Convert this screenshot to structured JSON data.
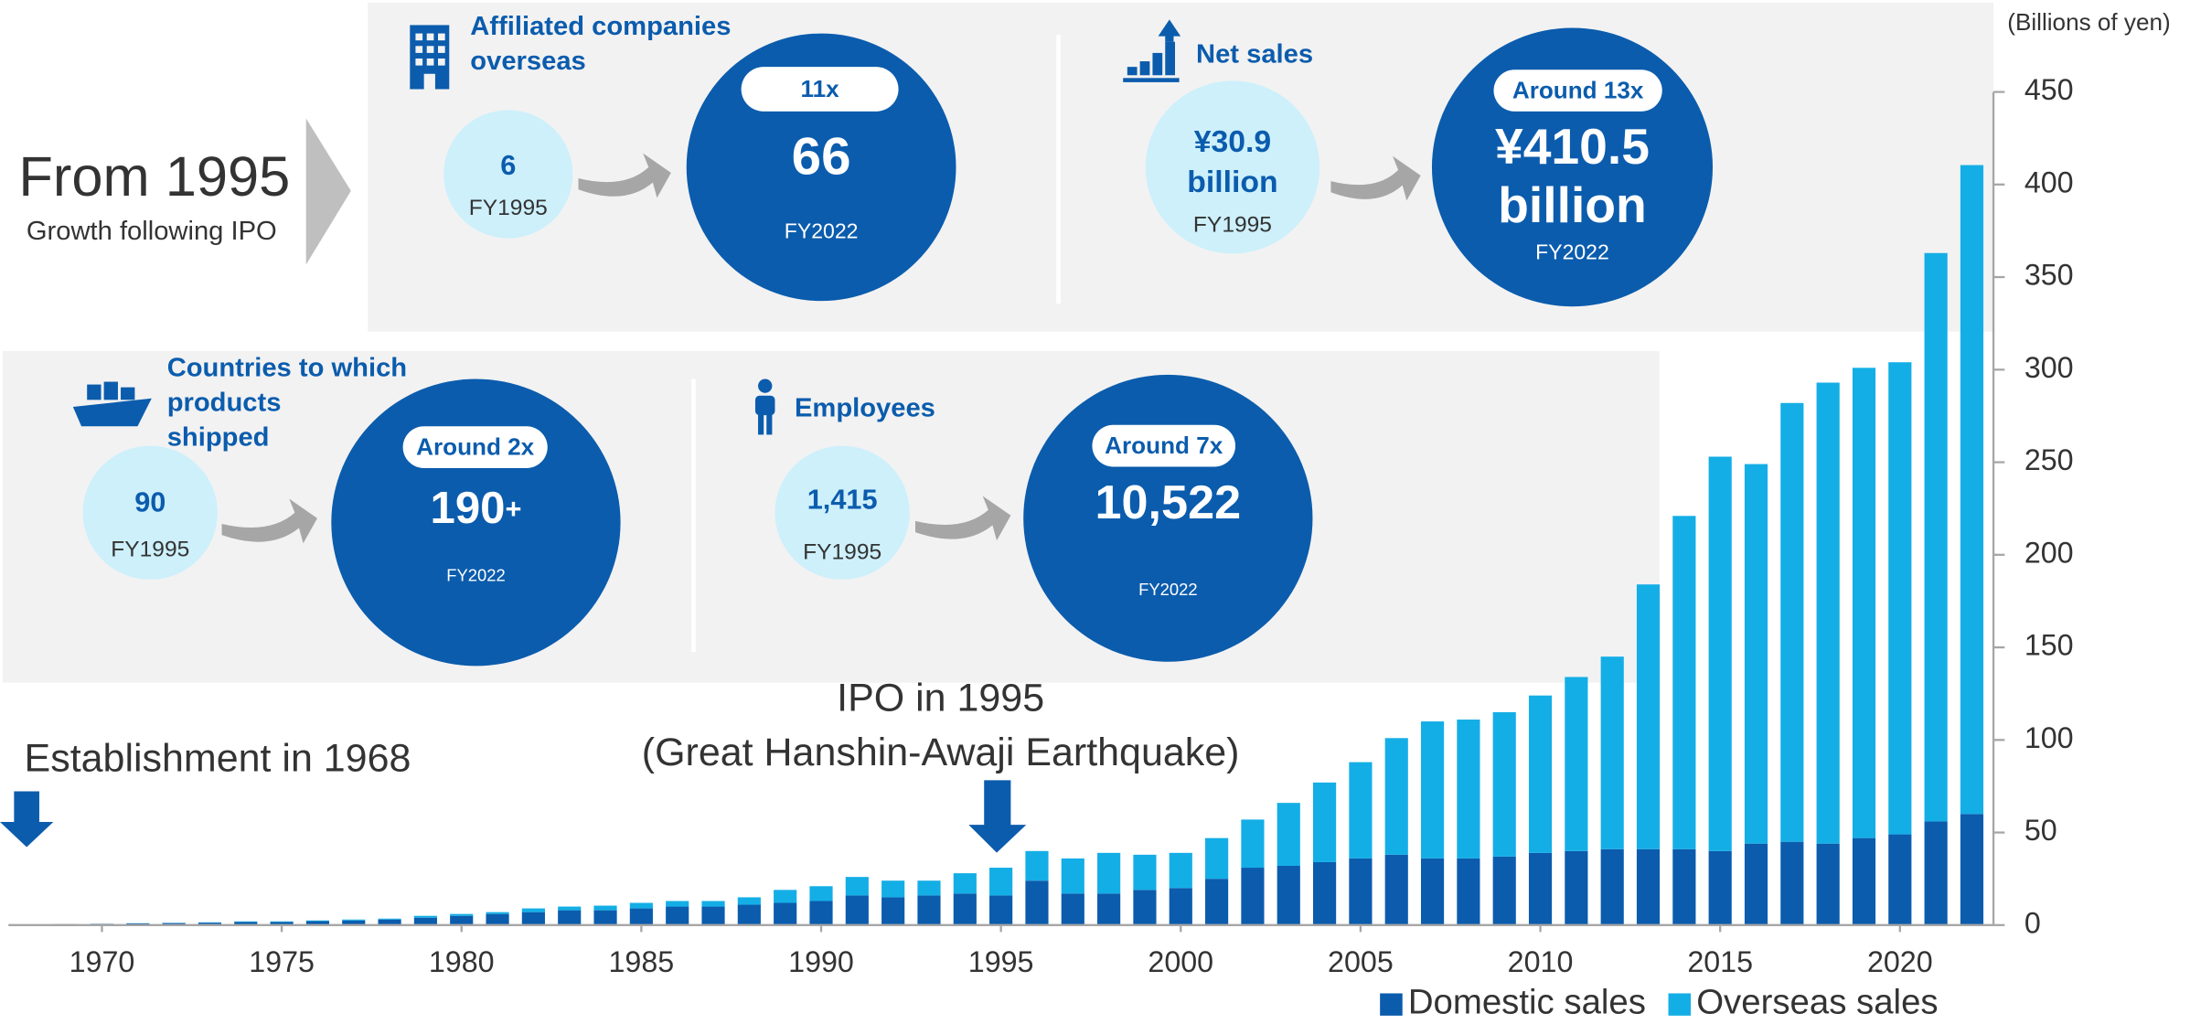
{
  "intro": {
    "title": "From 1995",
    "subtitle": "Growth following IPO"
  },
  "panels": [
    {
      "title": [
        "Affiliated companies",
        "overseas"
      ],
      "before_value": [
        "6"
      ],
      "before_label": "FY1995",
      "multiplier": "11x",
      "after_value": [
        "66"
      ],
      "after_suffix": "",
      "after_label": "FY2022"
    },
    {
      "title": [
        "Net sales"
      ],
      "before_value": [
        "¥30.9",
        "billion"
      ],
      "before_label": "FY1995",
      "multiplier": "Around 13x",
      "after_value": [
        "¥410.5",
        "billion"
      ],
      "after_suffix": "",
      "after_label": "FY2022"
    },
    {
      "title": [
        "Countries to which",
        "products",
        "shipped"
      ],
      "before_value": [
        "90"
      ],
      "before_label": "FY1995",
      "multiplier": "Around 2x",
      "after_value": [
        "190"
      ],
      "after_suffix": "+",
      "after_label": "FY2022"
    },
    {
      "title": [
        "Employees"
      ],
      "before_value": [
        "1,415"
      ],
      "before_label": "FY1995",
      "multiplier": "Around 7x",
      "after_value": [
        "10,522"
      ],
      "after_suffix": "",
      "after_label": "FY2022"
    }
  ],
  "chart_data": {
    "type": "bar",
    "stacked": true,
    "ylabel": "(Billions of yen)",
    "annotations": [
      "Establishment in 1968",
      "IPO in 1995",
      "(Great Hanshin-Awaji Earthquake)"
    ],
    "x": [
      1968,
      1969,
      1970,
      1971,
      1972,
      1973,
      1974,
      1975,
      1976,
      1977,
      1978,
      1979,
      1980,
      1981,
      1982,
      1983,
      1984,
      1985,
      1986,
      1987,
      1988,
      1989,
      1990,
      1991,
      1992,
      1993,
      1994,
      1995,
      1996,
      1997,
      1998,
      1999,
      2000,
      2001,
      2002,
      2003,
      2004,
      2005,
      2006,
      2007,
      2008,
      2009,
      2010,
      2011,
      2012,
      2013,
      2014,
      2015,
      2016,
      2017,
      2018,
      2019,
      2020,
      2021,
      2022
    ],
    "series": [
      {
        "name": "Domestic sales",
        "color": "#0b5cad",
        "values": [
          0.4,
          0.5,
          0.7,
          0.9,
          1.1,
          1.3,
          1.7,
          1.7,
          2.1,
          2.5,
          3,
          4,
          5,
          6,
          7,
          8,
          8,
          9,
          10,
          10,
          11,
          12,
          13,
          16,
          15,
          16,
          17,
          16,
          24,
          17,
          17,
          19,
          20,
          25,
          31,
          32,
          34,
          36,
          38,
          36,
          36,
          37,
          39,
          40,
          41,
          41,
          41,
          40,
          44,
          45,
          44,
          47,
          49,
          56,
          60
        ]
      },
      {
        "name": "Overseas sales",
        "color": "#14aee6",
        "values": [
          0,
          0,
          0,
          0.1,
          0.1,
          0.2,
          0.3,
          0.3,
          0.4,
          0.5,
          0.5,
          1,
          1,
          1,
          2,
          2,
          2.5,
          3,
          3,
          3,
          4,
          7,
          8,
          10,
          9,
          8,
          11,
          15,
          16,
          19,
          22,
          19,
          19,
          22,
          26,
          34,
          43,
          52,
          63,
          74,
          75,
          78,
          85,
          94,
          104,
          143,
          180,
          213,
          205,
          237,
          249,
          254,
          255,
          307,
          350.5
        ]
      }
    ],
    "xlim": [
      1967.4,
      2022.6
    ],
    "xticks": [
      1970,
      1975,
      1980,
      1985,
      1990,
      1995,
      2000,
      2005,
      2010,
      2015,
      2020
    ],
    "ylim": [
      0,
      450
    ],
    "yticks": [
      0,
      50,
      100,
      150,
      200,
      250,
      300,
      350,
      400,
      450
    ],
    "legend": "bottom-right"
  }
}
